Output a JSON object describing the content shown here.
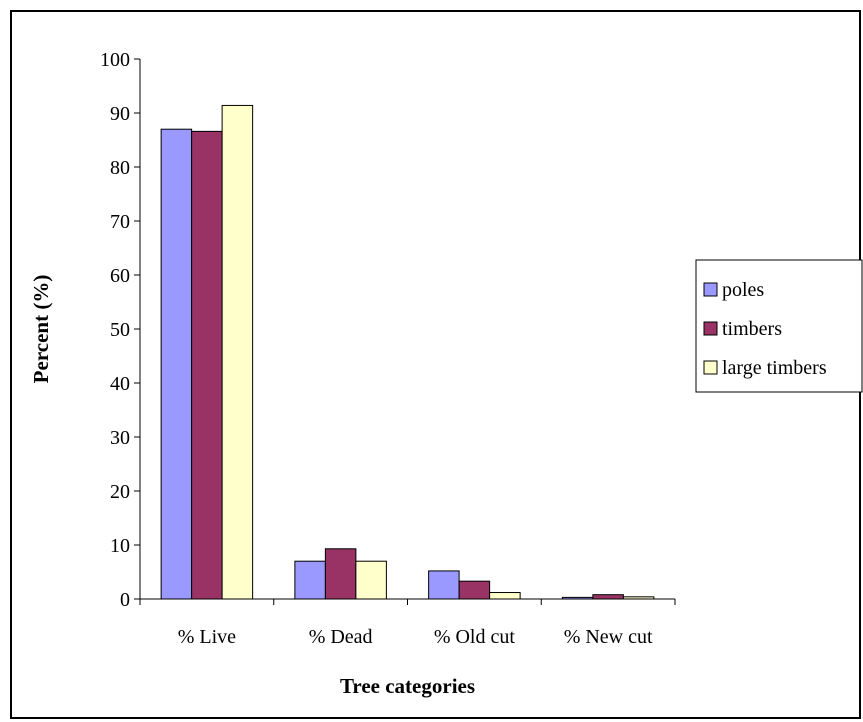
{
  "chart_data": {
    "type": "bar",
    "title": "",
    "xlabel": "Tree categories",
    "ylabel": "Percent (%)",
    "categories": [
      "% Live",
      "% Dead",
      "% Old cut",
      "% New cut"
    ],
    "ylim": [
      0,
      100
    ],
    "yticks": [
      0,
      10,
      20,
      30,
      40,
      50,
      60,
      70,
      80,
      90,
      100
    ],
    "grid": false,
    "legend_position": "right",
    "series": [
      {
        "name": "poles",
        "color": "#9999ff",
        "values": [
          87,
          7,
          5.2,
          0.3
        ]
      },
      {
        "name": "timbers",
        "color": "#993366",
        "values": [
          86.6,
          9.3,
          3.3,
          0.8
        ]
      },
      {
        "name": "large timbers",
        "color": "#ffffcc",
        "values": [
          91.4,
          7,
          1.2,
          0.4
        ]
      }
    ]
  }
}
